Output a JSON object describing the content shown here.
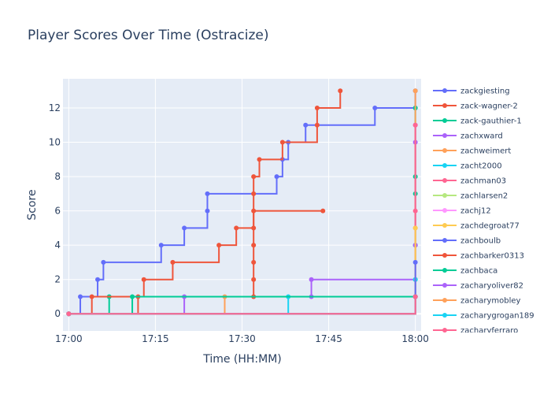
{
  "chart_data": {
    "type": "line",
    "line_shape": "step-after",
    "title": "Player Scores Over Time (Ostracize)",
    "xlabel": "Time (HH:MM)",
    "ylabel": "Score",
    "x_ticks": [
      "17:00",
      "17:15",
      "17:30",
      "17:45",
      "18:00"
    ],
    "y_ticks": [
      0,
      2,
      4,
      6,
      8,
      10,
      12
    ],
    "xlim": [
      "16:59",
      "18:01"
    ],
    "ylim": [
      -1.0,
      13.7
    ],
    "grid": true,
    "legend_position": "right",
    "plot_background": "#e5ecf6",
    "series": [
      {
        "name": "zackgiesting",
        "color": "#636efa",
        "points": [
          [
            "17:00",
            0
          ],
          [
            "17:02",
            1
          ],
          [
            "17:05",
            2
          ],
          [
            "17:06",
            3
          ],
          [
            "17:16",
            4
          ],
          [
            "17:20",
            5
          ],
          [
            "17:24",
            6
          ],
          [
            "17:24",
            7
          ],
          [
            "17:36",
            8
          ],
          [
            "17:37",
            9
          ],
          [
            "17:38",
            10
          ],
          [
            "17:41",
            11
          ],
          [
            "17:53",
            12
          ],
          [
            "18:00",
            12
          ],
          [
            "18:00",
            13
          ]
        ]
      },
      {
        "name": "zack-wagner-2",
        "color": "#ef553b",
        "points": [
          [
            "17:00",
            0
          ],
          [
            "17:12",
            1
          ],
          [
            "17:13",
            2
          ],
          [
            "17:18",
            3
          ],
          [
            "17:26",
            4
          ],
          [
            "17:29",
            5
          ],
          [
            "17:32",
            7
          ],
          [
            "17:32",
            8
          ],
          [
            "17:33",
            9
          ],
          [
            "17:37",
            10
          ],
          [
            "17:43",
            11
          ],
          [
            "17:43",
            12
          ],
          [
            "17:47",
            13
          ]
        ]
      },
      {
        "name": "zack-gauthier-1",
        "color": "#00cc96",
        "points": [
          [
            "17:00",
            0
          ],
          [
            "17:07",
            1
          ],
          [
            "18:00",
            1
          ],
          [
            "18:00",
            2
          ],
          [
            "18:00",
            4
          ],
          [
            "18:00",
            7
          ],
          [
            "18:00",
            8
          ],
          [
            "18:00",
            12
          ]
        ]
      },
      {
        "name": "zachxward",
        "color": "#ab63fa",
        "points": [
          [
            "17:00",
            0
          ],
          [
            "17:20",
            1
          ],
          [
            "17:42",
            1
          ],
          [
            "17:42",
            2
          ],
          [
            "18:00",
            1
          ],
          [
            "18:00",
            4
          ],
          [
            "18:00",
            10
          ],
          [
            "18:00",
            11
          ]
        ]
      },
      {
        "name": "zachweimert",
        "color": "#ffa15a",
        "points": [
          [
            "17:00",
            0
          ],
          [
            "17:27",
            1
          ],
          [
            "18:00",
            1
          ],
          [
            "18:00",
            5
          ],
          [
            "18:00",
            13
          ]
        ]
      },
      {
        "name": "zacht2000",
        "color": "#19d3f3",
        "points": [
          [
            "17:00",
            0
          ],
          [
            "17:38",
            1
          ],
          [
            "18:00",
            1
          ],
          [
            "18:00",
            2
          ]
        ]
      },
      {
        "name": "zachman03",
        "color": "#ff6692",
        "points": [
          [
            "17:00",
            0
          ],
          [
            "18:00",
            1
          ],
          [
            "18:00",
            6
          ],
          [
            "18:00",
            11
          ]
        ]
      },
      {
        "name": "zachlarsen2",
        "color": "#b6e880",
        "points": [
          [
            "17:00",
            0
          ],
          [
            "18:00",
            1
          ]
        ]
      },
      {
        "name": "zachj12",
        "color": "#ff97ff",
        "points": [
          [
            "17:00",
            0
          ],
          [
            "18:00",
            1
          ]
        ]
      },
      {
        "name": "zachdegroat77",
        "color": "#fecb52",
        "points": [
          [
            "17:00",
            0
          ],
          [
            "18:00",
            1
          ],
          [
            "18:00",
            5
          ]
        ]
      },
      {
        "name": "zachboulb",
        "color": "#636efa",
        "points": [
          [
            "17:00",
            0
          ],
          [
            "18:00",
            1
          ],
          [
            "18:00",
            3
          ]
        ]
      },
      {
        "name": "zachbarker0313",
        "color": "#ef553b",
        "points": [
          [
            "17:00",
            0
          ],
          [
            "17:04",
            1
          ],
          [
            "17:32",
            1
          ],
          [
            "17:32",
            2
          ],
          [
            "17:32",
            3
          ],
          [
            "17:32",
            4
          ],
          [
            "17:32",
            5
          ],
          [
            "17:32",
            6
          ],
          [
            "17:44",
            6
          ]
        ]
      },
      {
        "name": "zachbaca",
        "color": "#00cc96",
        "points": [
          [
            "17:00",
            0
          ],
          [
            "17:11",
            1
          ],
          [
            "18:00",
            1
          ]
        ]
      },
      {
        "name": "zacharyoliver82",
        "color": "#ab63fa",
        "points": [
          [
            "17:00",
            0
          ],
          [
            "18:00",
            1
          ]
        ]
      },
      {
        "name": "zacharymobley",
        "color": "#ffa15a",
        "points": [
          [
            "17:00",
            0
          ],
          [
            "18:00",
            1
          ]
        ]
      },
      {
        "name": "zacharygrogan189",
        "color": "#19d3f3",
        "points": [
          [
            "17:00",
            0
          ],
          [
            "18:00",
            1
          ]
        ]
      },
      {
        "name": "zacharyferraro",
        "color": "#ff6692",
        "points": [
          [
            "17:00",
            0
          ],
          [
            "18:00",
            1
          ]
        ]
      }
    ]
  }
}
